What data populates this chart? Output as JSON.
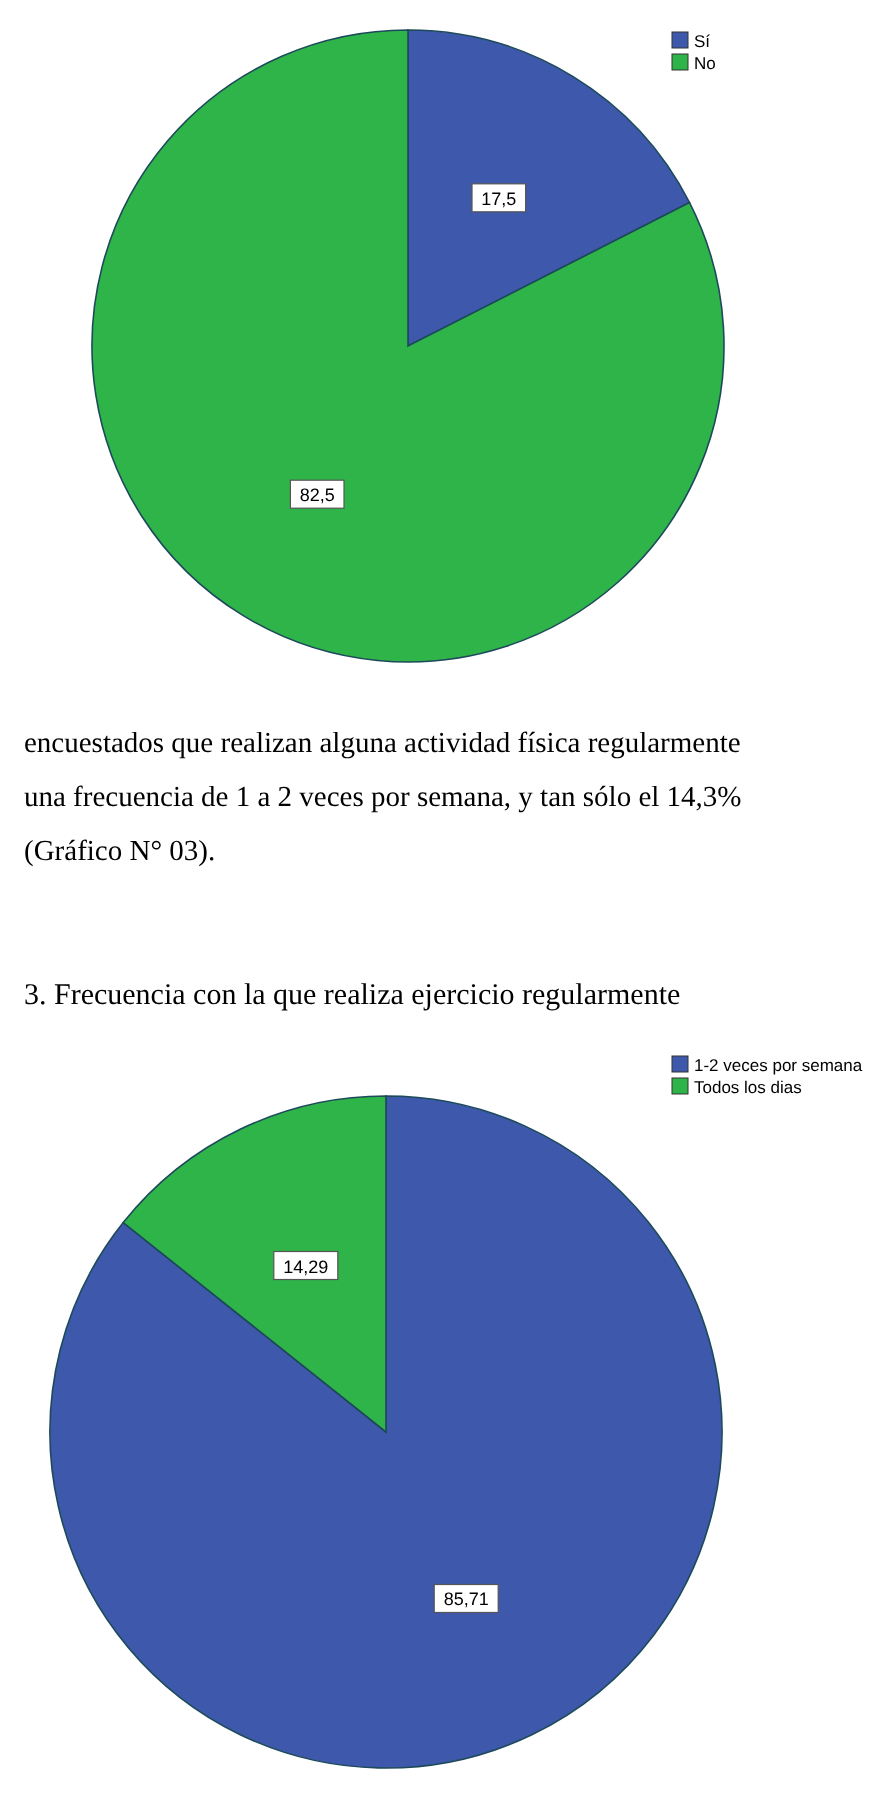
{
  "chart_data": [
    {
      "type": "pie",
      "categories": [
        "Sí",
        "No"
      ],
      "values": [
        17.5,
        82.5
      ],
      "colors": [
        "#3e58ac",
        "#2fb44a"
      ],
      "value_labels": [
        "17,5",
        "82,5"
      ],
      "legend": "top right",
      "annotations": [
        "encuestados que realizan alguna actividad física regularmente",
        "una frecuencia de 1 a 2 veces por semana, y tan sólo el 14,3%",
        "(Gráfico N° 03)."
      ]
    },
    {
      "type": "pie",
      "title": "3. Frecuencia con la que realiza ejercicio regularmente",
      "categories": [
        "1-2 veces por semana",
        "Todos los dias"
      ],
      "values": [
        85.71,
        14.29
      ],
      "colors": [
        "#3e58ac",
        "#2fb44a"
      ],
      "value_labels": [
        "85,71",
        "14,29"
      ],
      "legend": "top right"
    }
  ]
}
